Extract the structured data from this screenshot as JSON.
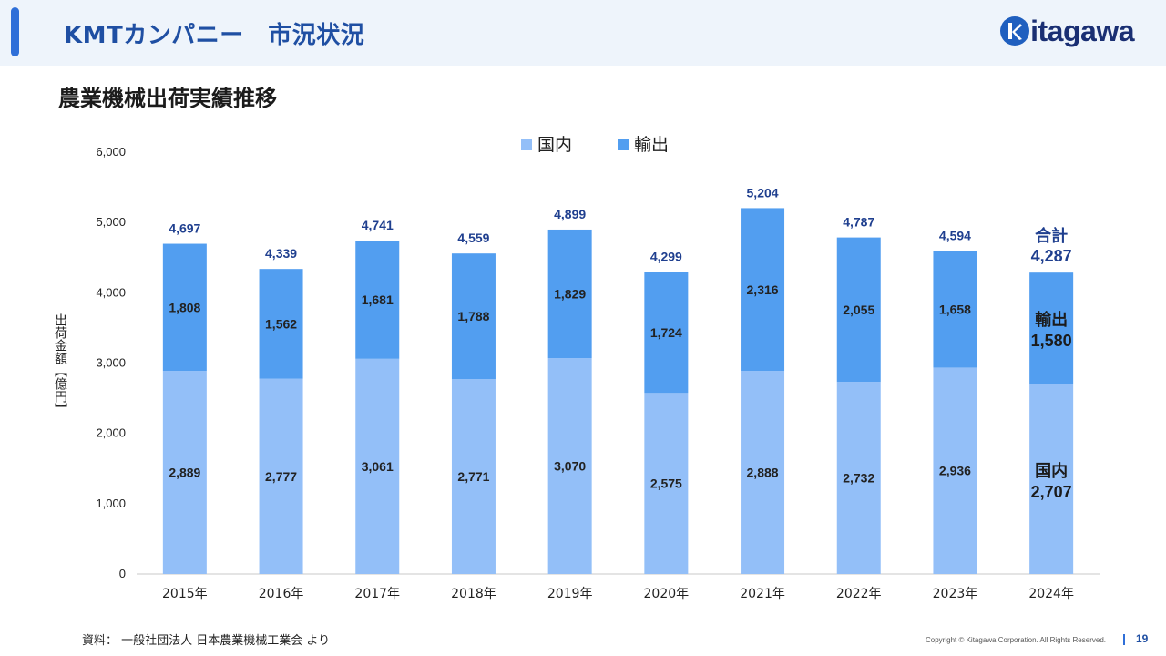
{
  "header": {
    "title": "KMTカンパニー　市況状況",
    "logo_text": "itagawa",
    "logo_letter": "k"
  },
  "section": {
    "title": "農業機械出荷実績推移"
  },
  "colors": {
    "domestic": "#93bff8",
    "export": "#529ef0",
    "brand": "#1f4fa3",
    "logo_navy": "#1a2f73"
  },
  "chart_data": {
    "type": "bar",
    "stacked": true,
    "categories": [
      "2015年",
      "2016年",
      "2017年",
      "2018年",
      "2019年",
      "2020年",
      "2021年",
      "2022年",
      "2023年",
      "2024年"
    ],
    "series": [
      {
        "name": "国内",
        "values": [
          2889,
          2777,
          3061,
          2771,
          3070,
          2575,
          2888,
          2732,
          2936,
          2707
        ]
      },
      {
        "name": "輸出",
        "values": [
          1808,
          1562,
          1681,
          1788,
          1829,
          1724,
          2316,
          2055,
          1658,
          1580
        ]
      }
    ],
    "totals": [
      4697,
      4339,
      4741,
      4559,
      4899,
      4299,
      5204,
      4787,
      4594,
      4287
    ],
    "ylabel": "出荷金額【億円】",
    "ylim": [
      0,
      6000
    ],
    "yticks": [
      0,
      1000,
      2000,
      3000,
      4000,
      5000,
      6000
    ],
    "legend_position": "top",
    "grid": false,
    "last_bar_labels": {
      "total": "合計",
      "export": "輸出",
      "domestic": "国内"
    }
  },
  "footer": {
    "source": "資料：  一般社団法人  日本農業機械工業会  より",
    "copyright": "Copyright © Kitagawa Corporation. All Rights Reserved.",
    "page": "19"
  }
}
